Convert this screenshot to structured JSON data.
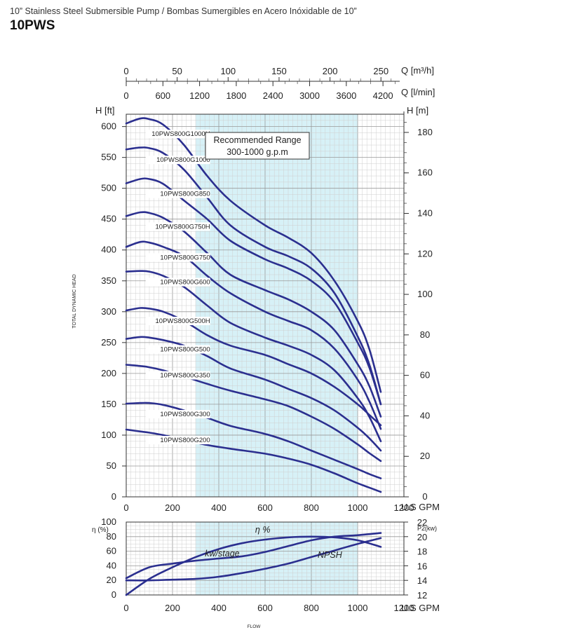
{
  "header": {
    "title": "10” Stainless Steel Submersible Pump / Bombas Sumergibles en Acero Inóxidable de 10”",
    "model": "10PWS"
  },
  "colors": {
    "curve": "#2b2f8f",
    "range_fill": "#d7f1f7",
    "grid": "#aaaaaa",
    "axis": "#333333"
  },
  "chart_data": [
    {
      "type": "line",
      "title": "",
      "xlabel": "FLOW",
      "x_unit_label": "U.S GPM",
      "ylabel": "TOTAL DYNAMIC HEAD",
      "xlim": [
        0,
        1200
      ],
      "ylim": [
        0,
        620
      ],
      "x_ticks": [
        0,
        200,
        400,
        600,
        800,
        1000,
        1200
      ],
      "y_ticks": [
        0,
        50,
        100,
        150,
        200,
        250,
        300,
        350,
        400,
        450,
        500,
        550,
        600
      ],
      "y_axis_label": "H [ft]",
      "y2_axis_label": "H [m]",
      "y2_ticks": [
        0,
        20,
        40,
        60,
        80,
        100,
        120,
        140,
        160,
        180
      ],
      "top_axis_1": {
        "label": "Q [m³/h]",
        "ticks": [
          0,
          50,
          100,
          150,
          200,
          250
        ]
      },
      "top_axis_2": {
        "label": "Q [l/min]",
        "ticks": [
          0,
          600,
          1200,
          1800,
          2400,
          3000,
          3600,
          4200
        ]
      },
      "recommended_range": {
        "x": [
          300,
          1000
        ],
        "label_line1": "Recommended Range",
        "label_line2": "300-1000 g.p.m"
      },
      "grid": true,
      "series": [
        {
          "name": "10PWS800G1000H",
          "x": [
            0,
            60,
            100,
            160,
            250,
            350,
            450,
            600,
            700,
            800,
            900,
            1000,
            1050,
            1100
          ],
          "y": [
            605,
            613,
            612,
            603,
            570,
            520,
            480,
            440,
            420,
            395,
            350,
            285,
            240,
            170
          ]
        },
        {
          "name": "10PWS800G1000",
          "x": [
            0,
            60,
            100,
            160,
            250,
            350,
            450,
            600,
            700,
            800,
            900,
            1000,
            1050,
            1100
          ],
          "y": [
            563,
            566,
            565,
            557,
            530,
            485,
            440,
            405,
            390,
            370,
            330,
            260,
            215,
            150
          ]
        },
        {
          "name": "10PWS800G850",
          "x": [
            0,
            60,
            100,
            160,
            250,
            350,
            450,
            600,
            700,
            800,
            900,
            1000,
            1050,
            1100
          ],
          "y": [
            508,
            515,
            515,
            507,
            480,
            450,
            415,
            385,
            370,
            350,
            315,
            250,
            210,
            150
          ]
        },
        {
          "name": "10PWS800G750H",
          "x": [
            0,
            60,
            100,
            160,
            250,
            350,
            450,
            600,
            700,
            800,
            900,
            1000,
            1050,
            1100
          ],
          "y": [
            455,
            461,
            460,
            452,
            430,
            395,
            360,
            335,
            320,
            300,
            270,
            215,
            180,
            130
          ]
        },
        {
          "name": "10PWS800G750",
          "x": [
            0,
            60,
            100,
            160,
            250,
            350,
            450,
            600,
            700,
            800,
            900,
            1000,
            1050,
            1100
          ],
          "y": [
            405,
            413,
            412,
            405,
            390,
            358,
            330,
            300,
            285,
            270,
            240,
            190,
            155,
            110
          ]
        },
        {
          "name": "10PWS800G600",
          "x": [
            0,
            60,
            100,
            160,
            250,
            350,
            450,
            600,
            700,
            800,
            900,
            1000,
            1050,
            1100
          ],
          "y": [
            365,
            366,
            365,
            358,
            340,
            310,
            282,
            258,
            245,
            230,
            205,
            160,
            130,
            90
          ]
        },
        {
          "name": "10PWS800G500H",
          "x": [
            0,
            60,
            100,
            160,
            250,
            350,
            450,
            600,
            700,
            800,
            900,
            1000,
            1050,
            1100
          ],
          "y": [
            302,
            306,
            305,
            300,
            285,
            262,
            245,
            230,
            215,
            200,
            178,
            150,
            133,
            116
          ]
        },
        {
          "name": "10PWS800G500",
          "x": [
            0,
            60,
            100,
            160,
            250,
            350,
            450,
            600,
            700,
            800,
            900,
            1000,
            1050,
            1100
          ],
          "y": [
            256,
            259,
            258,
            254,
            245,
            228,
            208,
            190,
            175,
            160,
            140,
            112,
            95,
            75
          ]
        },
        {
          "name": "10PWS800G350",
          "x": [
            0,
            60,
            100,
            160,
            250,
            350,
            450,
            600,
            700,
            800,
            900,
            1000,
            1050,
            1100
          ],
          "y": [
            214,
            212,
            210,
            205,
            195,
            183,
            172,
            158,
            147,
            130,
            110,
            85,
            71,
            58
          ]
        },
        {
          "name": "10PWS800G300",
          "x": [
            0,
            60,
            100,
            160,
            250,
            350,
            450,
            600,
            700,
            800,
            900,
            1000,
            1050,
            1100
          ],
          "y": [
            151,
            152,
            152,
            149,
            140,
            128,
            115,
            102,
            90,
            75,
            60,
            45,
            37,
            30
          ]
        },
        {
          "name": "10PWS800G200",
          "x": [
            0,
            60,
            100,
            160,
            250,
            350,
            450,
            600,
            700,
            800,
            900,
            1000,
            1050,
            1100
          ],
          "y": [
            109,
            106,
            104,
            100,
            92,
            84,
            78,
            70,
            62,
            52,
            38,
            22,
            15,
            8
          ]
        }
      ]
    },
    {
      "type": "line",
      "title": "",
      "xlabel": "FLOW",
      "x_unit_label": "U.S GPM",
      "ylabel": "η (%)",
      "y2label": "P2(kw)",
      "xlim": [
        0,
        1200
      ],
      "ylim": [
        0,
        100
      ],
      "y2lim": [
        12,
        22
      ],
      "x_ticks": [
        0,
        200,
        400,
        600,
        800,
        1000,
        1200
      ],
      "y_ticks": [
        0,
        20,
        40,
        60,
        80,
        100
      ],
      "y2_ticks": [
        12,
        14,
        16,
        18,
        20,
        22
      ],
      "grid": true,
      "recommended_range": {
        "x": [
          300,
          1000
        ]
      },
      "series": [
        {
          "name": "η %",
          "axis": "left",
          "x": [
            0,
            100,
            200,
            300,
            400,
            500,
            600,
            700,
            800,
            900,
            1000,
            1100
          ],
          "y": [
            0,
            22,
            38,
            52,
            63,
            71,
            76,
            79,
            80,
            79,
            75,
            66
          ]
        },
        {
          "name": "kw/stage",
          "axis": "right",
          "x": [
            0,
            100,
            200,
            300,
            400,
            500,
            600,
            700,
            800,
            900,
            1000,
            1100
          ],
          "y": [
            14.3,
            15.8,
            16.3,
            16.7,
            17.0,
            17.3,
            17.9,
            18.7,
            19.5,
            20.0,
            20.2,
            20.5
          ]
        },
        {
          "name": "NPSH",
          "axis": "left",
          "x": [
            0,
            100,
            200,
            300,
            400,
            500,
            600,
            700,
            800,
            900,
            1000,
            1100
          ],
          "y": [
            20,
            20,
            21,
            22,
            25,
            30,
            36,
            43,
            52,
            61,
            70,
            78
          ]
        }
      ]
    }
  ]
}
